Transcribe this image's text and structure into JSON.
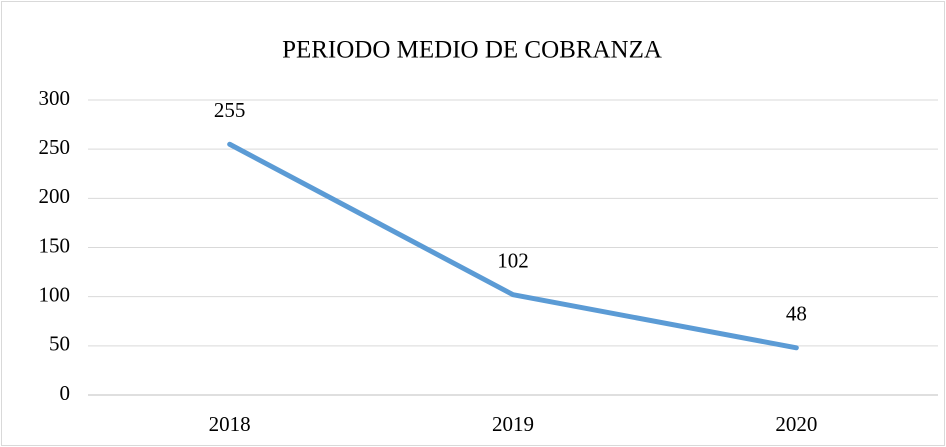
{
  "chart_data": {
    "type": "line",
    "title": "PERIODO MEDIO DE COBRANZA",
    "categories": [
      "2018",
      "2019",
      "2020"
    ],
    "series": [
      {
        "name": "PERIODO MEDIO DE COBRANZA",
        "color": "#5b9bd5",
        "values": [
          255,
          102,
          48
        ]
      }
    ],
    "ylim": [
      0,
      300
    ],
    "yticks": [
      0,
      50,
      100,
      150,
      200,
      250,
      300
    ],
    "grid": true
  }
}
